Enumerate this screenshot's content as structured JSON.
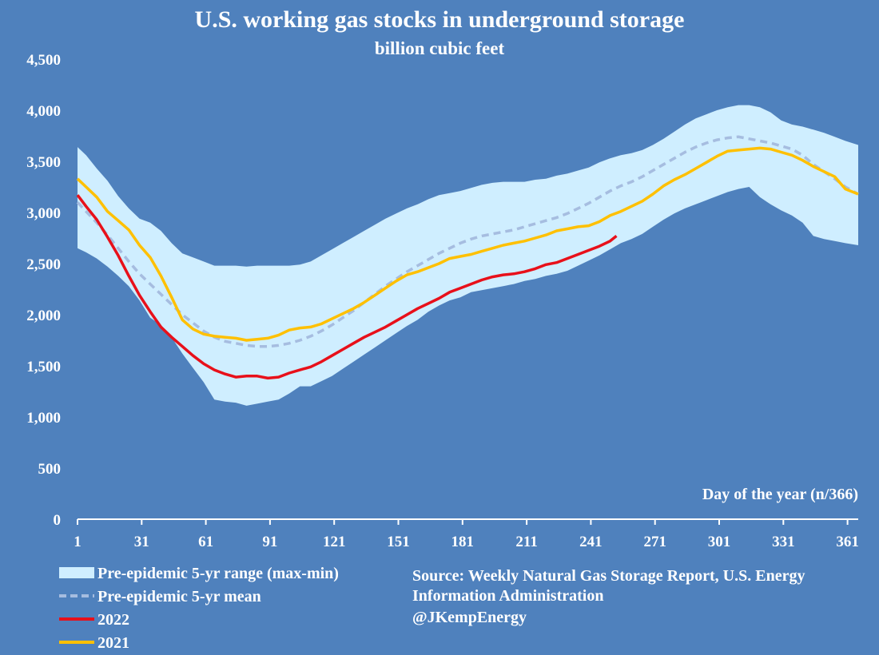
{
  "chart_data": {
    "type": "area-line",
    "title": "U.S. working gas stocks in underground storage",
    "subtitle": "billion cubic feet",
    "xlabel": "Day of the year (n/366)",
    "ylabel": "",
    "xlim": [
      1,
      366
    ],
    "ylim": [
      0,
      4500
    ],
    "x_ticks": [
      1,
      31,
      61,
      91,
      121,
      151,
      181,
      211,
      241,
      271,
      301,
      331,
      361
    ],
    "y_ticks": [
      0,
      500,
      1000,
      1500,
      2000,
      2500,
      3000,
      3500,
      4000,
      4500
    ],
    "colors": {
      "background": "#4f81bd",
      "range": "#cfeeff",
      "mean": "#a6bde0",
      "y2022": "#e8101a",
      "y2021": "#ffc000"
    },
    "series": [
      {
        "name": "Pre-epidemic 5-yr range (max-min)",
        "kind": "band",
        "x": [
          1,
          5,
          10,
          15,
          20,
          25,
          30,
          35,
          40,
          45,
          50,
          55,
          60,
          65,
          70,
          75,
          80,
          85,
          90,
          95,
          100,
          105,
          110,
          115,
          120,
          125,
          130,
          135,
          140,
          145,
          150,
          155,
          160,
          165,
          170,
          175,
          180,
          185,
          190,
          195,
          200,
          205,
          210,
          215,
          220,
          225,
          230,
          235,
          240,
          245,
          250,
          255,
          260,
          265,
          270,
          275,
          280,
          285,
          290,
          295,
          300,
          305,
          310,
          315,
          320,
          325,
          330,
          335,
          340,
          345,
          350,
          355,
          360,
          366
        ],
        "max": [
          3640,
          3560,
          3430,
          3310,
          3160,
          3040,
          2940,
          2900,
          2820,
          2700,
          2600,
          2560,
          2520,
          2480,
          2480,
          2480,
          2470,
          2480,
          2480,
          2480,
          2480,
          2490,
          2520,
          2580,
          2640,
          2700,
          2760,
          2820,
          2880,
          2940,
          2990,
          3040,
          3080,
          3130,
          3170,
          3190,
          3210,
          3240,
          3270,
          3290,
          3300,
          3300,
          3300,
          3320,
          3330,
          3360,
          3380,
          3410,
          3440,
          3490,
          3530,
          3560,
          3580,
          3610,
          3660,
          3720,
          3790,
          3860,
          3920,
          3960,
          4000,
          4030,
          4050,
          4050,
          4030,
          3980,
          3900,
          3860,
          3840,
          3810,
          3780,
          3740,
          3700,
          3660
        ],
        "min": [
          2650,
          2610,
          2550,
          2470,
          2380,
          2280,
          2140,
          1970,
          1900,
          1780,
          1620,
          1480,
          1340,
          1170,
          1150,
          1140,
          1110,
          1130,
          1150,
          1170,
          1230,
          1300,
          1300,
          1350,
          1400,
          1470,
          1540,
          1610,
          1680,
          1750,
          1820,
          1890,
          1950,
          2030,
          2090,
          2140,
          2170,
          2220,
          2240,
          2260,
          2280,
          2300,
          2330,
          2350,
          2380,
          2400,
          2430,
          2480,
          2530,
          2580,
          2640,
          2700,
          2740,
          2790,
          2860,
          2930,
          2990,
          3040,
          3080,
          3120,
          3160,
          3200,
          3230,
          3250,
          3150,
          3080,
          3020,
          2970,
          2900,
          2770,
          2740,
          2720,
          2700,
          2680
        ]
      },
      {
        "name": "Pre-epidemic 5-yr mean",
        "kind": "dashed",
        "x": [
          1,
          5,
          10,
          15,
          20,
          25,
          30,
          35,
          40,
          45,
          50,
          55,
          60,
          65,
          70,
          75,
          80,
          85,
          90,
          95,
          100,
          105,
          110,
          115,
          120,
          125,
          130,
          135,
          140,
          145,
          150,
          155,
          160,
          165,
          170,
          175,
          180,
          185,
          190,
          195,
          200,
          205,
          210,
          215,
          220,
          225,
          230,
          235,
          240,
          245,
          250,
          255,
          260,
          265,
          270,
          275,
          280,
          285,
          290,
          295,
          300,
          305,
          310,
          315,
          320,
          325,
          330,
          335,
          340,
          345,
          350,
          355,
          360,
          366
        ],
        "values": [
          3100,
          3010,
          2900,
          2780,
          2650,
          2520,
          2400,
          2300,
          2200,
          2100,
          2000,
          1920,
          1840,
          1780,
          1740,
          1720,
          1700,
          1690,
          1690,
          1700,
          1720,
          1750,
          1790,
          1840,
          1900,
          1970,
          2040,
          2120,
          2200,
          2280,
          2350,
          2420,
          2480,
          2540,
          2600,
          2650,
          2700,
          2740,
          2770,
          2790,
          2810,
          2830,
          2860,
          2890,
          2920,
          2950,
          2990,
          3040,
          3090,
          3150,
          3210,
          3260,
          3300,
          3350,
          3410,
          3470,
          3530,
          3590,
          3640,
          3680,
          3710,
          3730,
          3740,
          3720,
          3700,
          3680,
          3650,
          3620,
          3560,
          3470,
          3400,
          3330,
          3250,
          3180
        ]
      },
      {
        "name": "2022",
        "kind": "line",
        "x": [
          1,
          5,
          10,
          15,
          20,
          25,
          30,
          35,
          40,
          45,
          50,
          55,
          60,
          65,
          70,
          75,
          80,
          85,
          90,
          95,
          100,
          105,
          110,
          115,
          120,
          125,
          130,
          135,
          140,
          145,
          150,
          155,
          160,
          165,
          170,
          175,
          180,
          185,
          190,
          195,
          200,
          205,
          210,
          215,
          220,
          225,
          230,
          235,
          240,
          245,
          250,
          253
        ],
        "values": [
          3170,
          3060,
          2930,
          2760,
          2580,
          2380,
          2190,
          2030,
          1880,
          1780,
          1690,
          1600,
          1520,
          1460,
          1420,
          1390,
          1400,
          1400,
          1380,
          1390,
          1430,
          1460,
          1490,
          1540,
          1600,
          1660,
          1720,
          1780,
          1830,
          1880,
          1940,
          2000,
          2060,
          2110,
          2160,
          2220,
          2260,
          2300,
          2340,
          2370,
          2390,
          2400,
          2420,
          2450,
          2490,
          2510,
          2550,
          2590,
          2630,
          2670,
          2720,
          2770
        ]
      },
      {
        "name": "2021",
        "kind": "line",
        "x": [
          1,
          5,
          10,
          15,
          20,
          25,
          30,
          35,
          40,
          45,
          50,
          55,
          60,
          65,
          70,
          75,
          80,
          85,
          90,
          95,
          100,
          105,
          110,
          115,
          120,
          125,
          130,
          135,
          140,
          145,
          150,
          155,
          160,
          165,
          170,
          175,
          180,
          185,
          190,
          195,
          200,
          205,
          210,
          215,
          220,
          225,
          230,
          235,
          240,
          245,
          250,
          255,
          260,
          265,
          270,
          275,
          280,
          285,
          290,
          295,
          300,
          305,
          310,
          315,
          320,
          325,
          330,
          335,
          340,
          345,
          350,
          355,
          360,
          366
        ],
        "values": [
          3330,
          3250,
          3150,
          3010,
          2920,
          2830,
          2680,
          2560,
          2380,
          2170,
          1950,
          1860,
          1810,
          1790,
          1780,
          1770,
          1750,
          1760,
          1770,
          1800,
          1850,
          1870,
          1880,
          1910,
          1960,
          2010,
          2060,
          2120,
          2190,
          2260,
          2330,
          2390,
          2420,
          2460,
          2500,
          2550,
          2570,
          2590,
          2620,
          2650,
          2680,
          2700,
          2720,
          2750,
          2780,
          2820,
          2840,
          2860,
          2870,
          2910,
          2970,
          3010,
          3060,
          3110,
          3180,
          3260,
          3320,
          3370,
          3430,
          3490,
          3550,
          3600,
          3610,
          3620,
          3630,
          3620,
          3590,
          3560,
          3510,
          3450,
          3400,
          3350,
          3230,
          3180
        ]
      }
    ],
    "legend": [
      {
        "label": "Pre-epidemic 5-yr range (max-min)",
        "style": "band"
      },
      {
        "label": "Pre-epidemic 5-yr mean",
        "style": "dashed"
      },
      {
        "label": "2022",
        "style": "red-line"
      },
      {
        "label": "2021",
        "style": "gold-line"
      }
    ],
    "source": [
      "Source: Weekly Natural Gas Storage Report, U.S. Energy",
      "Information Administration",
      "@JKempEnergy"
    ]
  }
}
